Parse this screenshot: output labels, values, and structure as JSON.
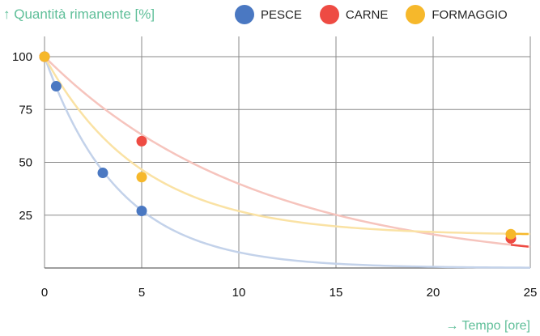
{
  "chart_data": {
    "type": "scatter",
    "ylabel": "↑ Quantità rimanente [%]",
    "xlabel": "→ Tempo [ore]",
    "xlim": [
      0,
      25
    ],
    "ylim": [
      0,
      100
    ],
    "xticks": [
      0,
      5,
      10,
      15,
      20,
      25
    ],
    "yticks": [
      25,
      50,
      75,
      100
    ],
    "grid": true,
    "legend_position": "top-right",
    "series": [
      {
        "name": "PESCE",
        "color": "#4a78c2",
        "curve_color": "#c3d2ea",
        "x": [
          0,
          0.6,
          3,
          5
        ],
        "y": [
          100,
          86,
          45,
          27
        ]
      },
      {
        "name": "CARNE",
        "color": "#ee4b43",
        "curve_color": "#f6c4bd",
        "x": [
          0,
          5,
          24
        ],
        "y": [
          100,
          60,
          14
        ]
      },
      {
        "name": "FORMAGGIO",
        "color": "#f6b82b",
        "curve_color": "#fae2a4",
        "x": [
          0,
          5,
          24
        ],
        "y": [
          100,
          43,
          16
        ]
      }
    ]
  }
}
